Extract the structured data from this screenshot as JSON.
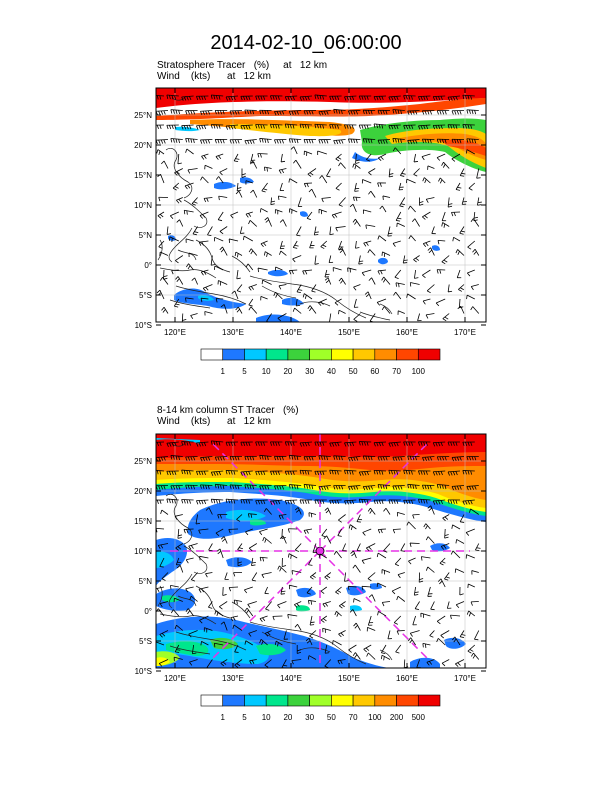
{
  "main_title": "2014-02-10_06:00:00",
  "panels": [
    {
      "title_line1": "Stratosphere Tracer   (%)     at   12 km",
      "title_line2": "Wind    (kts)      at   12 km",
      "lon_ticks": [
        "120°E",
        "130°E",
        "140°E",
        "150°E",
        "160°E",
        "170°E"
      ],
      "lat_ticks": [
        "25°N",
        "20°N",
        "15°N",
        "10°N",
        "5°N",
        "0°",
        "5°S",
        "10°S"
      ],
      "colorbar_labels": [
        "1",
        "5",
        "10",
        "20",
        "30",
        "40",
        "50",
        "60",
        "70",
        "100"
      ]
    },
    {
      "title_line1": "8-14 km column ST Tracer   (%)",
      "title_line2": "Wind    (kts)      at   12 km",
      "lon_ticks": [
        "120°E",
        "130°E",
        "140°E",
        "150°E",
        "160°E",
        "170°E"
      ],
      "lat_ticks": [
        "25°N",
        "20°N",
        "15°N",
        "10°N",
        "5°N",
        "0°",
        "5°S",
        "10°S"
      ],
      "colorbar_labels": [
        "1",
        "5",
        "10",
        "20",
        "30",
        "50",
        "70",
        "100",
        "200",
        "500"
      ]
    }
  ],
  "colors": {
    "levels": [
      "#ffffff",
      "#1e78ff",
      "#00c8ff",
      "#00e68c",
      "#3cd23c",
      "#a0ff28",
      "#ffff00",
      "#ffc800",
      "#ff8c00",
      "#ff4600",
      "#f00000"
    ],
    "marker": "#e632e6"
  }
}
